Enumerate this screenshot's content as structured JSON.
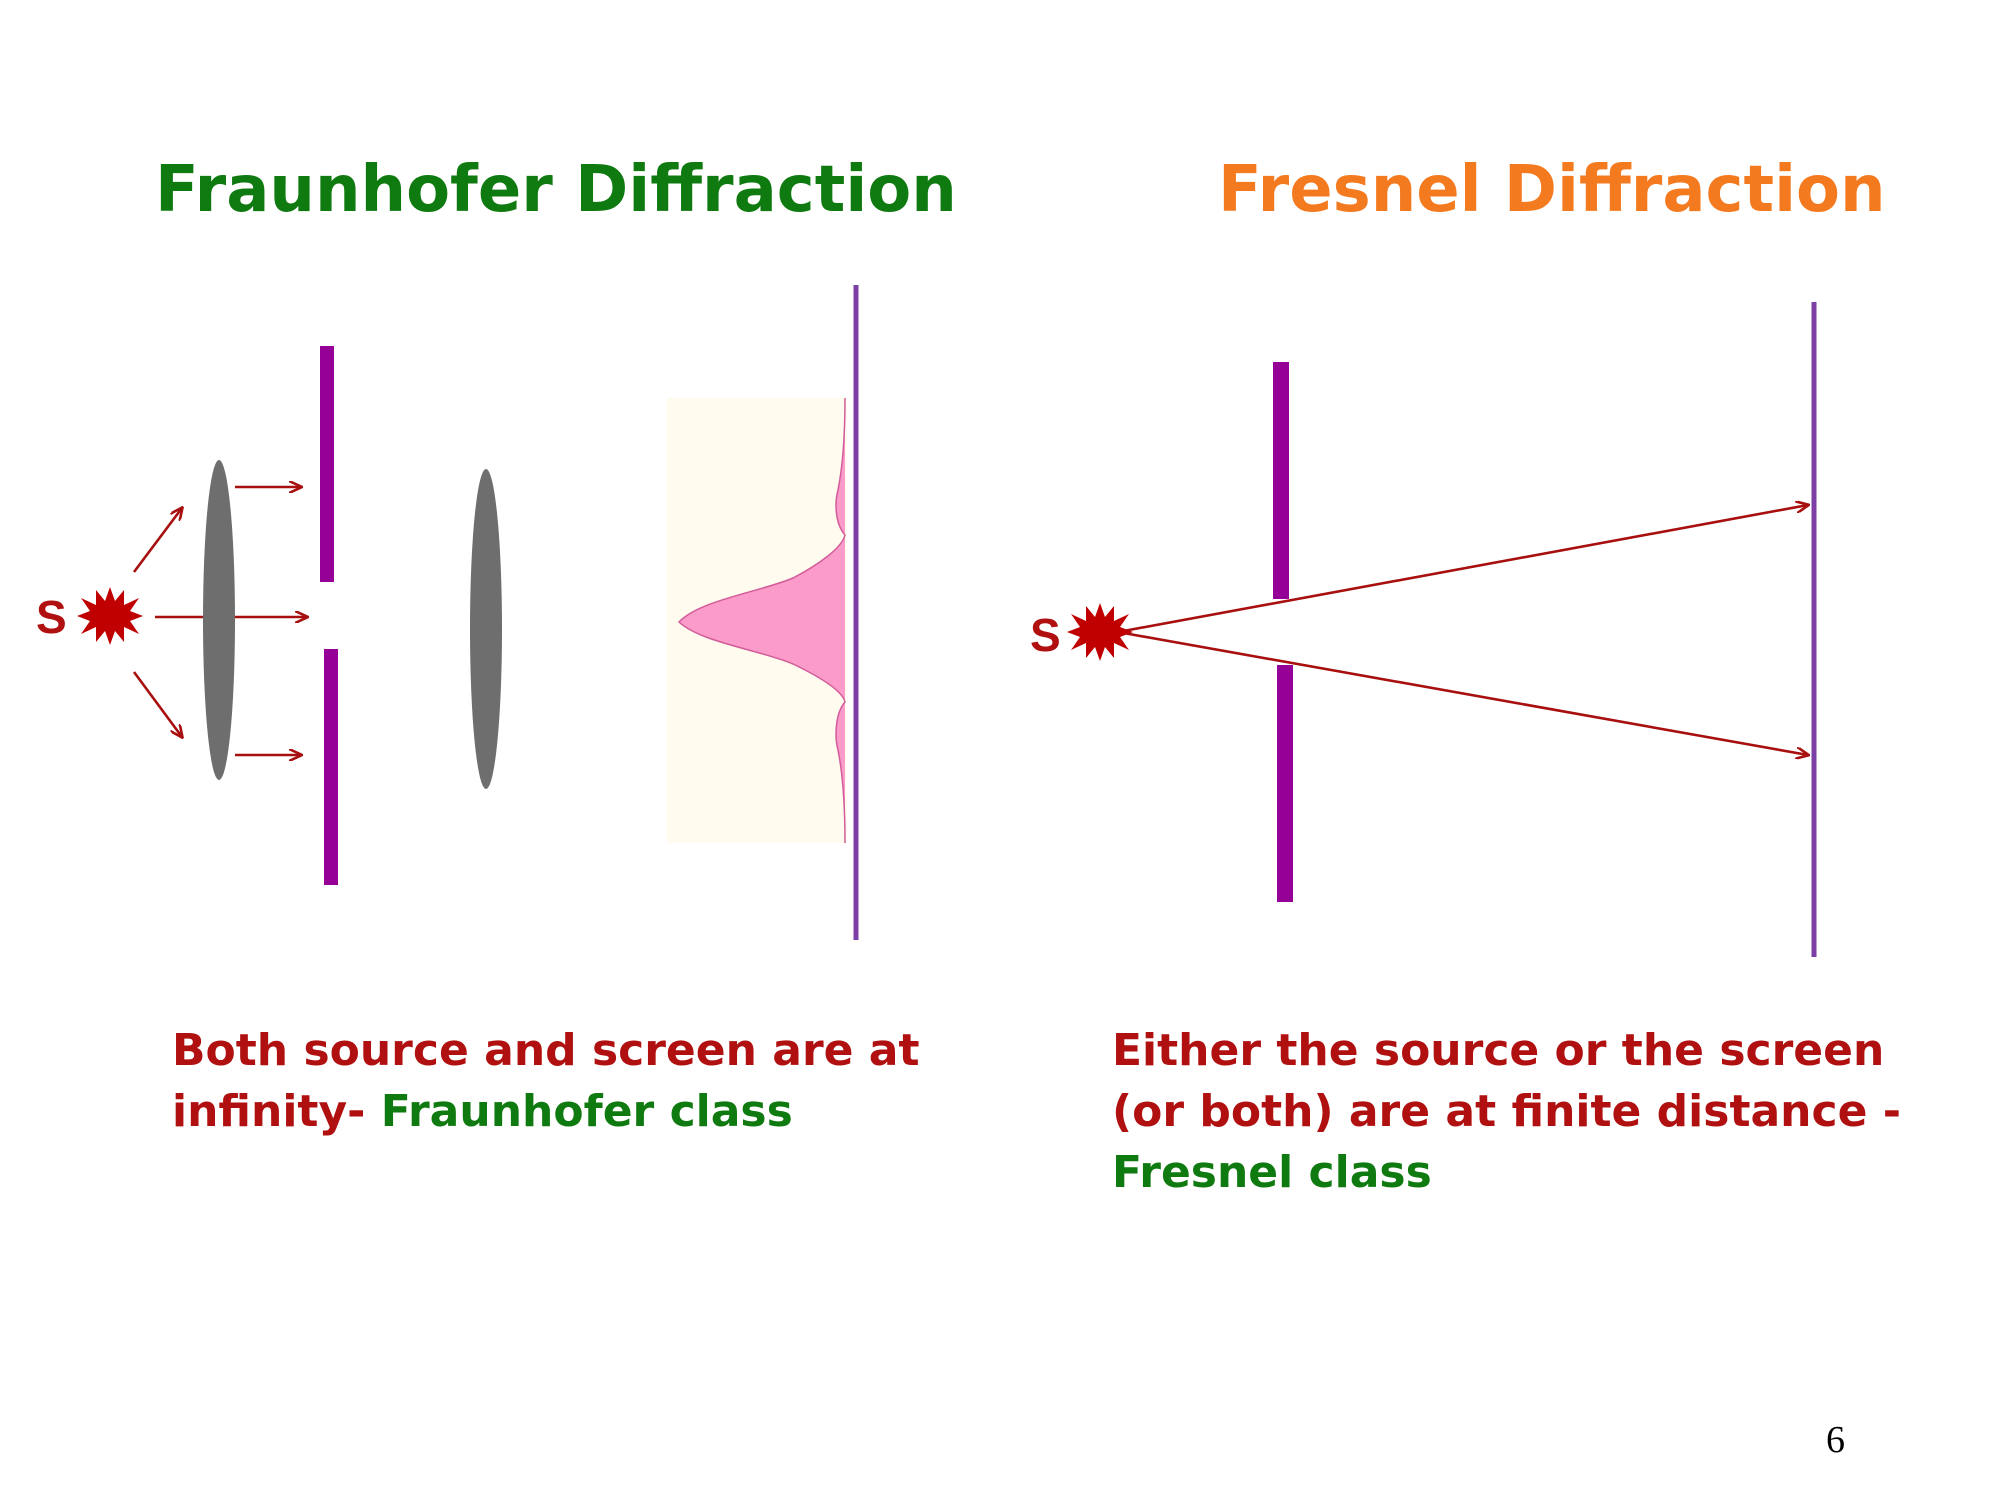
{
  "colors": {
    "green": "#0f7a0f",
    "orange": "#f47a20",
    "red": "#b01010",
    "star": "#c00000",
    "arrow": "#a80f0f",
    "slit": "#950096",
    "screen": "#7b3fa6",
    "lens": "#6e6e6e",
    "pattern_fill": "#fb9bc9",
    "pattern_bg": "#fffbee"
  },
  "icons": {
    "source": "red-star-burst-icon",
    "arrow": "arrow-right-icon"
  },
  "left_panel": {
    "title": "Fraunhofer Diffraction",
    "source_label": "S",
    "caption_red": "Both source and screen are at infinity-",
    "caption_green": "Fraunhofer class"
  },
  "right_panel": {
    "title": "Fresnel Diffraction",
    "source_label": "S",
    "caption_red": "Either the source or the screen (or both) are at finite distance -",
    "caption_green": "Fresnel class"
  },
  "page_number": "6"
}
